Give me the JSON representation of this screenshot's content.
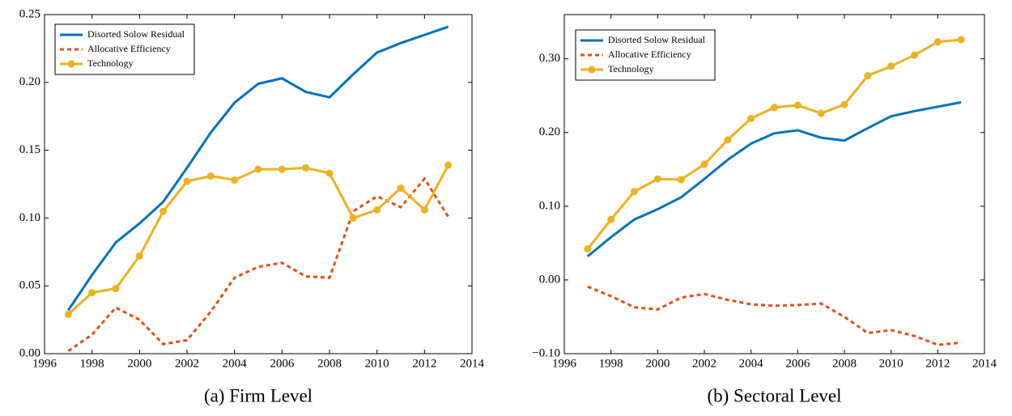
{
  "chart_data": [
    {
      "type": "line",
      "caption": "(a) Firm Level",
      "x": [
        1997,
        1998,
        1999,
        2000,
        2001,
        2002,
        2003,
        2004,
        2005,
        2006,
        2007,
        2008,
        2009,
        2010,
        2011,
        2012,
        2013
      ],
      "xlim": [
        1996,
        2014
      ],
      "xticks": [
        1996,
        1998,
        2000,
        2002,
        2004,
        2006,
        2008,
        2010,
        2012,
        2014
      ],
      "ylim": [
        0,
        0.25
      ],
      "yticks": [
        {
          "value": 0,
          "label": "0.00"
        },
        {
          "value": 0.05,
          "label": "0.05"
        },
        {
          "value": 0.1,
          "label": "0.10"
        },
        {
          "value": 0.15,
          "label": "0.15"
        },
        {
          "value": 0.2,
          "label": "0.20"
        },
        {
          "value": 0.25,
          "label": "0.25"
        }
      ],
      "legend": "upper left",
      "series": [
        {
          "name": "Disorted Solow Residual",
          "color": "#0072bd",
          "style": "solid",
          "marker": false,
          "values": [
            0.032,
            0.058,
            0.082,
            0.096,
            0.112,
            0.137,
            0.163,
            0.185,
            0.199,
            0.203,
            0.193,
            0.189,
            0.206,
            0.222,
            0.229,
            0.235,
            0.241
          ]
        },
        {
          "name": "Allocative Efficiency",
          "color": "#d95319",
          "style": "dashed",
          "marker": false,
          "values": [
            0.002,
            0.014,
            0.034,
            0.025,
            0.007,
            0.01,
            0.031,
            0.056,
            0.064,
            0.067,
            0.057,
            0.056,
            0.105,
            0.116,
            0.108,
            0.129,
            0.101
          ]
        },
        {
          "name": "Technology",
          "color": "#edb120",
          "style": "solid",
          "marker": true,
          "values": [
            0.029,
            0.045,
            0.048,
            0.072,
            0.105,
            0.127,
            0.131,
            0.128,
            0.136,
            0.136,
            0.137,
            0.133,
            0.1,
            0.106,
            0.122,
            0.106,
            0.139
          ]
        }
      ]
    },
    {
      "type": "line",
      "caption": "(b) Sectoral Level",
      "x": [
        1997,
        1998,
        1999,
        2000,
        2001,
        2002,
        2003,
        2004,
        2005,
        2006,
        2007,
        2008,
        2009,
        2010,
        2011,
        2012,
        2013
      ],
      "xlim": [
        1996,
        2014
      ],
      "xticks": [
        1996,
        1998,
        2000,
        2002,
        2004,
        2006,
        2008,
        2010,
        2012,
        2014
      ],
      "ylim": [
        -0.1,
        0.36
      ],
      "yticks": [
        {
          "value": -0.1,
          "label": "−0.10"
        },
        {
          "value": 0,
          "label": "0.00"
        },
        {
          "value": 0.1,
          "label": "0.10"
        },
        {
          "value": 0.2,
          "label": "0.20"
        },
        {
          "value": 0.3,
          "label": "0.30"
        }
      ],
      "legend": "upper left",
      "series": [
        {
          "name": "Disorted Solow Residual",
          "color": "#0072bd",
          "style": "solid",
          "marker": false,
          "values": [
            0.032,
            0.058,
            0.082,
            0.096,
            0.112,
            0.137,
            0.163,
            0.185,
            0.199,
            0.203,
            0.193,
            0.189,
            0.206,
            0.222,
            0.229,
            0.235,
            0.241
          ]
        },
        {
          "name": "Allocative Efficiency",
          "color": "#d95319",
          "style": "dashed",
          "marker": false,
          "values": [
            -0.009,
            -0.022,
            -0.037,
            -0.04,
            -0.024,
            -0.019,
            -0.027,
            -0.033,
            -0.035,
            -0.034,
            -0.032,
            -0.05,
            -0.072,
            -0.068,
            -0.076,
            -0.088,
            -0.085
          ]
        },
        {
          "name": "Technology",
          "color": "#edb120",
          "style": "solid",
          "marker": true,
          "values": [
            0.042,
            0.082,
            0.12,
            0.137,
            0.136,
            0.157,
            0.19,
            0.219,
            0.234,
            0.237,
            0.226,
            0.238,
            0.277,
            0.29,
            0.305,
            0.323,
            0.326
          ]
        }
      ]
    }
  ]
}
